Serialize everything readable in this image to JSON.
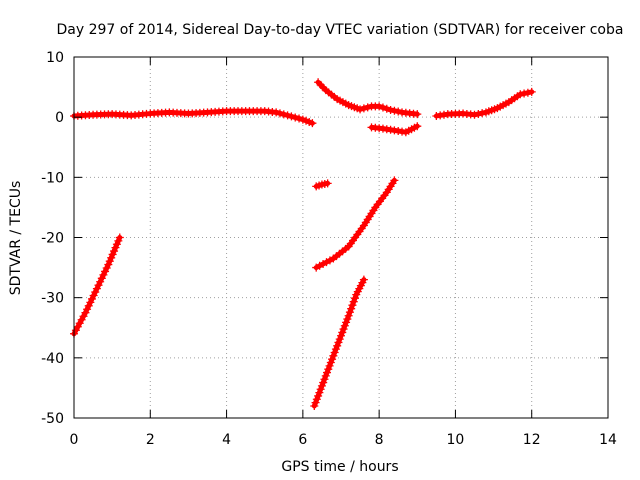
{
  "chart_data": {
    "type": "scatter",
    "title": "Day 297 of 2014, Sidereal Day-to-day VTEC variation (SDTVAR) for receiver coba",
    "xlabel": "GPS time / hours",
    "ylabel": "SDTVAR / TECUs",
    "xlim": [
      0,
      14
    ],
    "ylim": [
      -50,
      10
    ],
    "xticks": [
      "0",
      "2",
      "4",
      "6",
      "8",
      "10",
      "12",
      "14"
    ],
    "yticks": [
      "10",
      "0",
      "-10",
      "-20",
      "-30",
      "-40",
      "-50"
    ],
    "grid": true,
    "legend": "none",
    "marker_color": "#ff0000",
    "series": [
      {
        "points": [
          [
            0.0,
            0.2
          ],
          [
            0.5,
            0.4
          ],
          [
            1.0,
            0.5
          ],
          [
            1.5,
            0.3
          ],
          [
            2.0,
            0.6
          ],
          [
            2.5,
            0.8
          ],
          [
            3.0,
            0.6
          ],
          [
            3.5,
            0.8
          ],
          [
            4.0,
            1.0
          ],
          [
            4.5,
            1.0
          ],
          [
            5.0,
            1.0
          ],
          [
            5.3,
            0.8
          ],
          [
            5.6,
            0.3
          ],
          [
            6.0,
            -0.4
          ],
          [
            6.25,
            -1.0
          ]
        ]
      },
      {
        "points": [
          [
            6.4,
            5.8
          ],
          [
            6.6,
            4.5
          ],
          [
            6.9,
            3.0
          ],
          [
            7.2,
            2.0
          ],
          [
            7.5,
            1.3
          ],
          [
            7.8,
            1.8
          ],
          [
            8.0,
            1.8
          ],
          [
            8.3,
            1.2
          ],
          [
            8.6,
            0.8
          ],
          [
            9.0,
            0.5
          ]
        ]
      },
      {
        "points": [
          [
            7.8,
            -1.7
          ],
          [
            8.1,
            -1.9
          ],
          [
            8.4,
            -2.2
          ],
          [
            8.7,
            -2.5
          ],
          [
            9.0,
            -1.5
          ]
        ]
      },
      {
        "points": [
          [
            9.5,
            0.2
          ],
          [
            9.8,
            0.5
          ],
          [
            10.2,
            0.6
          ],
          [
            10.5,
            0.4
          ],
          [
            10.8,
            0.8
          ],
          [
            11.1,
            1.5
          ],
          [
            11.4,
            2.5
          ],
          [
            11.7,
            3.8
          ],
          [
            12.0,
            4.2
          ]
        ]
      },
      {
        "points": [
          [
            6.35,
            -11.5
          ],
          [
            6.5,
            -11.2
          ],
          [
            6.65,
            -11.0
          ]
        ]
      },
      {
        "points": [
          [
            0.0,
            -36.0
          ],
          [
            0.3,
            -32.5
          ],
          [
            0.6,
            -28.5
          ],
          [
            0.9,
            -24.5
          ],
          [
            1.2,
            -20.0
          ]
        ]
      },
      {
        "points": [
          [
            6.35,
            -25.0
          ],
          [
            6.8,
            -23.5
          ],
          [
            7.2,
            -21.5
          ],
          [
            7.6,
            -18.0
          ],
          [
            7.9,
            -15.0
          ],
          [
            8.2,
            -12.5
          ],
          [
            8.4,
            -10.5
          ]
        ]
      },
      {
        "points": [
          [
            6.3,
            -48.0
          ],
          [
            6.6,
            -43.0
          ],
          [
            6.9,
            -38.0
          ],
          [
            7.2,
            -33.0
          ],
          [
            7.4,
            -29.5
          ],
          [
            7.6,
            -27.0
          ]
        ]
      }
    ]
  }
}
